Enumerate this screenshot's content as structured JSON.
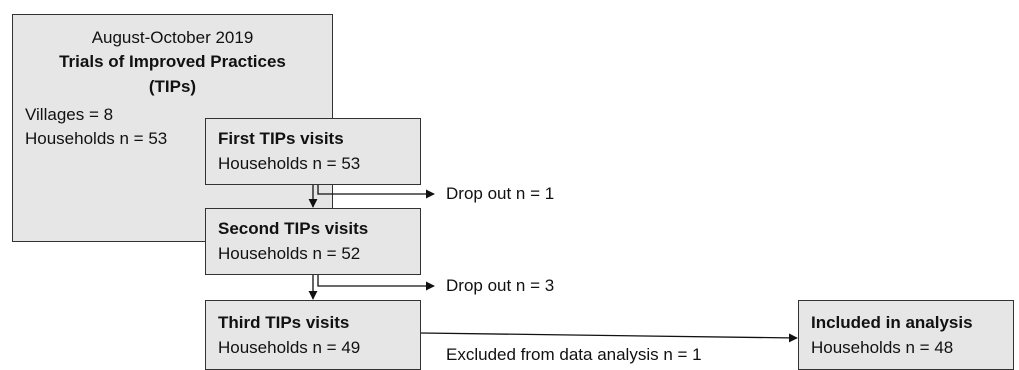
{
  "main_box": {
    "date": "August-October 2019",
    "title_line1": "Trials of Improved Practices",
    "title_line2": "(TIPs)",
    "villages": "Villages = 8",
    "households": "Households n = 53"
  },
  "first_visit": {
    "title": "First TIPs visits",
    "households": "Households n = 53"
  },
  "dropout_1": "Drop out n = 1",
  "second_visit": {
    "title": "Second TIPs visits",
    "households": "Households n = 52"
  },
  "dropout_2": "Drop out n = 3",
  "third_visit": {
    "title": "Third TIPs visits",
    "households": "Households n = 49"
  },
  "excluded": "Excluded from data analysis n = 1",
  "analysis": {
    "title": "Included in analysis",
    "households": "Households n = 48"
  }
}
